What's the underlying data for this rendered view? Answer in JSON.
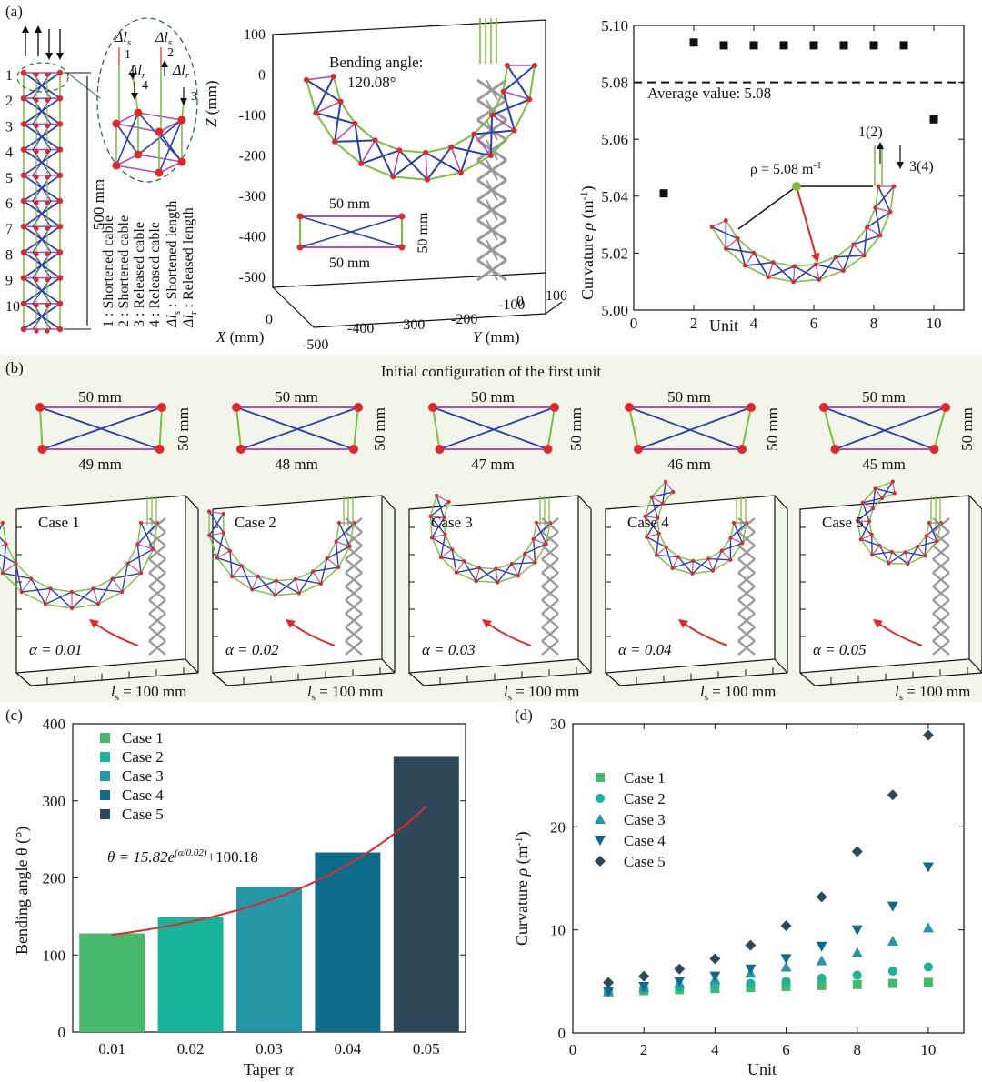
{
  "panel_labels": {
    "a": "(a)",
    "b": "(b)",
    "c": "(c)",
    "d": "(d)"
  },
  "colors": {
    "cable_blue": "#2b3fae",
    "strut_green": "#7cbf3c",
    "string_purple": "#b04fb6",
    "node_red": "#e0282c",
    "shortened_red": "#d9272e",
    "released_gold": "#a8891e",
    "panel_b_bg": "#f2f6ea",
    "gray_ghost": "#9a9a9a",
    "case_colors": [
      "#46b96a",
      "#18b39b",
      "#2697a6",
      "#0e6c8a",
      "#2e4859"
    ]
  },
  "panel_a": {
    "unit_numbers": [
      "1",
      "2",
      "3",
      "4",
      "5",
      "6",
      "7",
      "8",
      "9",
      "10"
    ],
    "length_label": "500 mm",
    "cable_numbers": [
      "1",
      "2",
      "3",
      "4"
    ],
    "delta_labels": {
      "shortened_1": "Δl",
      "shortened_1_sub": "s",
      "shortened_2": "Δl",
      "shortened_2_sub": "s",
      "released_1": "Δl",
      "released_1_sub": "r",
      "released_2": "Δl",
      "released_2_sub": "r"
    },
    "legend_lines": [
      "1 : Shortened cable",
      "2 : Shortened cable",
      "3 : Released cable",
      "4 : Released cable"
    ],
    "delta_legend": {
      "shortened": "Δl",
      "shortened_sub": "s",
      "shortened_text": " : Shortened length",
      "released": "Δl",
      "released_sub": "r",
      "released_text": " : Released length"
    },
    "plot3d": {
      "title_line1": "Bending angle:",
      "title_line2": "120.08°",
      "z_ticks": [
        "100",
        "0",
        "-100",
        "-200",
        "-300",
        "-400",
        "-500"
      ],
      "z_label": "Z",
      "z_unit": " (mm)",
      "y_ticks": [
        "-400",
        "-300",
        "-200",
        "-100",
        "0",
        "100"
      ],
      "y_label": "Y",
      "y_unit": " (mm)",
      "x_ticks": [
        "0",
        "-500"
      ],
      "x_label": "X",
      "x_unit": " (mm)",
      "unit_top": "50 mm",
      "unit_bottom": "50 mm",
      "unit_side": "50 mm"
    }
  },
  "chart_data": [
    {
      "id": "a-curvature",
      "type": "scatter",
      "title": "",
      "xlabel": "Unit",
      "ylabel_text": "Curvature ",
      "ylabel_symbol": "ρ",
      "ylabel_unit": " (m",
      "ylabel_exp": "-1",
      "ylabel_close": ")",
      "x": [
        1,
        2,
        3,
        4,
        5,
        6,
        7,
        8,
        9,
        10
      ],
      "y": [
        5.041,
        5.094,
        5.093,
        5.093,
        5.093,
        5.093,
        5.093,
        5.093,
        5.093,
        5.067
      ],
      "xlim": [
        0,
        11
      ],
      "ylim": [
        5.0,
        5.1
      ],
      "xticks": [
        "0",
        "2",
        "4",
        "6",
        "8",
        "10"
      ],
      "yticks": [
        "5.00",
        "5.02",
        "5.04",
        "5.06",
        "5.08",
        "5.10"
      ],
      "reference_line": {
        "value": 5.08,
        "label": "Average value: 5.08"
      },
      "annotations": {
        "rho": "ρ = 5.08 m",
        "rho_exp": "-1",
        "cable12": "1(2)",
        "cable34": "3(4)"
      }
    },
    {
      "id": "c-bending-angle",
      "type": "bar",
      "xlabel_text": "Taper ",
      "xlabel_symbol": "α",
      "ylabel": "Bending angle θ (°)",
      "categories": [
        "0.01",
        "0.02",
        "0.03",
        "0.04",
        "0.05"
      ],
      "values": [
        128,
        149,
        188,
        233,
        357
      ],
      "series_names": [
        "Case 1",
        "Case 2",
        "Case 3",
        "Case 4",
        "Case 5"
      ],
      "ylim": [
        0,
        400
      ],
      "yticks": [
        "0",
        "100",
        "200",
        "300",
        "400"
      ],
      "fit": {
        "equation_text": "θ = 15.82e",
        "equation_exp": "(α/0.02)",
        "equation_tail": "+100.18",
        "a": 15.82,
        "b": 0.02,
        "c": 100.18
      }
    },
    {
      "id": "d-curvature-cases",
      "type": "scatter",
      "xlabel": "Unit",
      "ylabel_text": "Curvature ",
      "ylabel_symbol": "ρ",
      "ylabel_unit": " (m",
      "ylabel_exp": "-1",
      "ylabel_close": ")",
      "x": [
        1,
        2,
        3,
        4,
        5,
        6,
        7,
        8,
        9,
        10
      ],
      "xlim": [
        0,
        11
      ],
      "ylim": [
        0,
        30
      ],
      "xticks": [
        "0",
        "2",
        "4",
        "6",
        "8",
        "10"
      ],
      "yticks": [
        "0",
        "10",
        "20",
        "30"
      ],
      "series": [
        {
          "name": "Case 1",
          "marker": "square",
          "values": [
            4.0,
            4.1,
            4.2,
            4.3,
            4.4,
            4.5,
            4.6,
            4.7,
            4.8,
            4.9
          ]
        },
        {
          "name": "Case 2",
          "marker": "circle",
          "values": [
            4.0,
            4.2,
            4.4,
            4.6,
            4.8,
            5.0,
            5.3,
            5.6,
            6.0,
            6.4
          ]
        },
        {
          "name": "Case 3",
          "marker": "triangle-up",
          "values": [
            4.0,
            4.4,
            4.8,
            5.2,
            5.8,
            6.4,
            7.0,
            7.8,
            8.9,
            10.2
          ]
        },
        {
          "name": "Case 4",
          "marker": "triangle-down",
          "values": [
            4.0,
            4.5,
            5.0,
            5.5,
            6.2,
            7.2,
            8.4,
            10.0,
            12.3,
            16.1
          ]
        },
        {
          "name": "Case 5",
          "marker": "diamond",
          "values": [
            4.9,
            5.5,
            6.2,
            7.2,
            8.5,
            10.4,
            13.2,
            17.6,
            23.1,
            28.9
          ]
        }
      ]
    }
  ],
  "panel_b": {
    "title": "Initial configuration of the first unit",
    "cases": [
      {
        "top": "50 mm",
        "bottom": "49 mm",
        "side": "50 mm",
        "case": "Case 1",
        "alpha": "α = 0.01",
        "ls": "l",
        "ls_sub": "s",
        "ls_val": " = 100 mm"
      },
      {
        "top": "50 mm",
        "bottom": "48 mm",
        "side": "50 mm",
        "case": "Case 2",
        "alpha": "α = 0.02",
        "ls": "l",
        "ls_sub": "s",
        "ls_val": " = 100 mm"
      },
      {
        "top": "50 mm",
        "bottom": "47 mm",
        "side": "50 mm",
        "case": "Case 3",
        "alpha": "α = 0.03",
        "ls": "l",
        "ls_sub": "s",
        "ls_val": " = 100 mm"
      },
      {
        "top": "50 mm",
        "bottom": "46 mm",
        "side": "50 mm",
        "case": "Case 4",
        "alpha": "α = 0.04",
        "ls": "l",
        "ls_sub": "s",
        "ls_val": " = 100 mm"
      },
      {
        "top": "50 mm",
        "bottom": "45 mm",
        "side": "50 mm",
        "case": "Case 5",
        "alpha": "α = 0.05",
        "ls": "l",
        "ls_sub": "s",
        "ls_val": " = 100 mm"
      }
    ]
  }
}
